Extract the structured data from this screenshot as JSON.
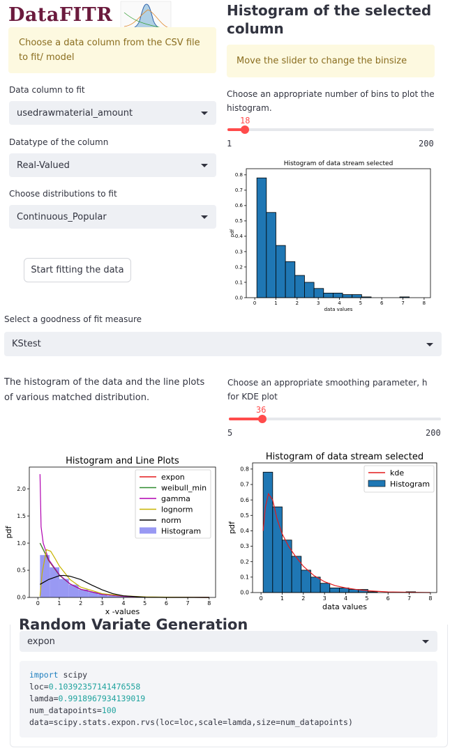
{
  "app": {
    "logo_text": "DataFITR",
    "page_title": "Histogram of the selected column"
  },
  "left_panel": {
    "info": "Choose a data column from the CSV file to fit/ model",
    "data_column_label": "Data column to fit",
    "data_column_value": "usedrawmaterial_amount",
    "datatype_label": "Datatype of the column",
    "datatype_value": "Real-Valued",
    "distributions_label": "Choose distributions to fit",
    "distributions_value": "Continuous_Popular",
    "fit_button": "Start fitting the data"
  },
  "right_panel": {
    "info": "Move the slider to change the binsize",
    "bins_label": "Choose an appropriate number of bins to plot the histogram.",
    "bins_slider": {
      "value": "18",
      "min": "1",
      "max": "200",
      "fraction": 0.0854
    }
  },
  "gof": {
    "label": "Select a goodness of fit measure",
    "value": "KStest"
  },
  "lower_left_text": "The histogram of the data and the line plots of various matched distribution.",
  "kde": {
    "label": "Choose an appropriate smoothing parameter, h for KDE plot",
    "slider": {
      "value": "36",
      "min": "5",
      "max": "200",
      "fraction": 0.159
    }
  },
  "rvg": {
    "title": "Random Variate Generation",
    "select_value": "expon",
    "code": [
      {
        "t": "kw",
        "s": "import"
      },
      {
        "t": "txt",
        "s": " scipy"
      },
      {
        "t": "br"
      },
      {
        "t": "txt",
        "s": "loc="
      },
      {
        "t": "num",
        "s": "0.10392357141476558"
      },
      {
        "t": "br"
      },
      {
        "t": "txt",
        "s": "lamda="
      },
      {
        "t": "num",
        "s": "0.9918967934139019"
      },
      {
        "t": "br"
      },
      {
        "t": "txt",
        "s": "num_datapoints="
      },
      {
        "t": "num",
        "s": "100"
      },
      {
        "t": "br"
      },
      {
        "t": "txt",
        "s": "data=scipy.stats.expon.rvs(loc=loc,scale=lamda,size=num_datapoints)"
      }
    ]
  },
  "chart_data": [
    {
      "type": "bar",
      "title": "Histogram of data stream selected",
      "xlabel": "data values",
      "ylabel": "pdf",
      "xlim": [
        -0.4,
        8.3
      ],
      "ylim": [
        0,
        0.84
      ],
      "xticks": [
        "0",
        "1",
        "2",
        "3",
        "4",
        "5",
        "6",
        "7",
        "8"
      ],
      "yticks": [
        "0.0",
        "0.1",
        "0.2",
        "0.3",
        "0.4",
        "0.5",
        "0.6",
        "0.7",
        "0.8"
      ],
      "bin_edges": [
        0.1,
        0.55,
        1.0,
        1.45,
        1.9,
        2.35,
        2.8,
        3.25,
        3.7,
        4.15,
        4.6,
        5.05,
        5.5,
        5.95,
        6.4,
        6.85,
        7.3,
        7.75,
        8.2
      ],
      "values": [
        0.78,
        0.555,
        0.34,
        0.235,
        0.145,
        0.1,
        0.06,
        0.03,
        0.03,
        0.02,
        0.02,
        0.005,
        0.0,
        0.0,
        0.0,
        0.005,
        0.0,
        0.0
      ],
      "color": "#1f77b4"
    },
    {
      "type": "line",
      "title": "Histogram and Line Plots",
      "xlabel": "x -values",
      "ylabel": "pdf",
      "xlim": [
        -0.4,
        8.3
      ],
      "ylim": [
        0,
        2.4
      ],
      "xticks": [
        "0",
        "1",
        "2",
        "3",
        "4",
        "5",
        "6",
        "7",
        "8"
      ],
      "yticks": [
        "0.0",
        "0.5",
        "1.0",
        "1.5",
        "2.0"
      ],
      "histogram": {
        "name": "Histogram",
        "color": "#8080f0",
        "bin_edges": [
          0.1,
          0.55,
          1.0,
          1.45,
          1.9,
          2.35,
          2.8,
          3.25,
          3.7,
          4.15,
          4.6,
          5.05,
          5.5,
          5.95,
          6.4,
          6.85,
          7.3,
          7.75,
          8.2
        ],
        "values": [
          0.78,
          0.555,
          0.34,
          0.235,
          0.145,
          0.1,
          0.06,
          0.03,
          0.03,
          0.02,
          0.02,
          0.005,
          0.0,
          0.0,
          0.0,
          0.005,
          0.0,
          0.0
        ]
      },
      "series": [
        {
          "name": "expon",
          "color": "#e41a1c",
          "x": [
            0.1,
            0.5,
            1,
            1.5,
            2,
            3,
            4,
            5,
            6,
            8
          ],
          "y": [
            1.0,
            0.68,
            0.41,
            0.25,
            0.15,
            0.055,
            0.02,
            0.007,
            0.003,
            0.0
          ]
        },
        {
          "name": "weibull_min",
          "color": "#2e8b2e",
          "x": [
            0.1,
            0.5,
            1,
            1.5,
            2,
            3,
            4,
            5,
            6,
            8
          ],
          "y": [
            1.0,
            0.69,
            0.41,
            0.25,
            0.15,
            0.055,
            0.02,
            0.007,
            0.003,
            0.0
          ]
        },
        {
          "name": "gamma",
          "color": "#b000b0",
          "x": [
            0.1,
            0.15,
            0.25,
            0.5,
            1,
            1.5,
            2,
            3,
            4,
            5,
            6,
            8
          ],
          "y": [
            2.27,
            1.3,
            1.0,
            0.7,
            0.42,
            0.25,
            0.15,
            0.055,
            0.02,
            0.007,
            0.003,
            0.0
          ]
        },
        {
          "name": "lognorm",
          "color": "#c8b400",
          "x": [
            0.1,
            0.2,
            0.4,
            0.6,
            0.8,
            1,
            1.5,
            2,
            3,
            4,
            5,
            6,
            8
          ],
          "y": [
            0.02,
            0.45,
            0.88,
            0.85,
            0.72,
            0.58,
            0.33,
            0.19,
            0.07,
            0.03,
            0.01,
            0.005,
            0.0
          ]
        },
        {
          "name": "norm",
          "color": "#000000",
          "x": [
            0.1,
            0.5,
            1,
            1.2,
            1.5,
            2,
            2.5,
            3,
            3.5,
            4,
            5,
            6,
            8
          ],
          "y": [
            0.24,
            0.33,
            0.4,
            0.405,
            0.39,
            0.33,
            0.23,
            0.14,
            0.07,
            0.03,
            0.004,
            0.0,
            0.0
          ]
        }
      ],
      "legend": "top-right"
    },
    {
      "type": "bar",
      "title": "Histogram of data stream selected",
      "xlabel": "data values",
      "ylabel": "pdf",
      "xlim": [
        -0.4,
        8.3
      ],
      "ylim": [
        0,
        0.84
      ],
      "xticks": [
        "0",
        "1",
        "2",
        "3",
        "4",
        "5",
        "6",
        "7",
        "8"
      ],
      "yticks": [
        "0.0",
        "0.1",
        "0.2",
        "0.3",
        "0.4",
        "0.5",
        "0.6",
        "0.7",
        "0.8"
      ],
      "bin_edges": [
        0.1,
        0.55,
        1.0,
        1.45,
        1.9,
        2.35,
        2.8,
        3.25,
        3.7,
        4.15,
        4.6,
        5.05,
        5.5,
        5.95,
        6.4,
        6.85,
        7.3,
        7.75,
        8.2
      ],
      "values": [
        0.78,
        0.555,
        0.34,
        0.235,
        0.145,
        0.1,
        0.06,
        0.03,
        0.03,
        0.02,
        0.02,
        0.005,
        0.0,
        0.0,
        0.0,
        0.005,
        0.0,
        0.0
      ],
      "color": "#1f77b4",
      "kde": {
        "name": "kde",
        "color": "#e41a1c",
        "x": [
          0.1,
          0.2,
          0.35,
          0.55,
          0.75,
          1,
          1.3,
          1.6,
          2,
          2.5,
          3,
          3.5,
          4,
          4.5,
          5,
          6,
          7,
          8
        ],
        "y": [
          0.4,
          0.55,
          0.64,
          0.6,
          0.48,
          0.38,
          0.3,
          0.24,
          0.17,
          0.11,
          0.07,
          0.045,
          0.03,
          0.02,
          0.012,
          0.004,
          0.002,
          0.0
        ]
      },
      "legend_items": [
        "kde",
        "Histogram"
      ],
      "legend": "top-right"
    }
  ]
}
